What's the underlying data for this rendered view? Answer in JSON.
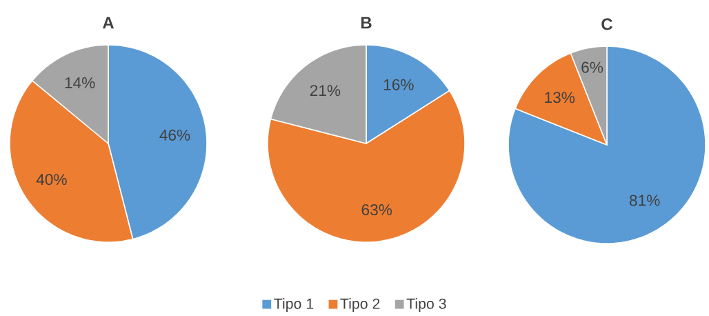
{
  "chart_data": [
    {
      "type": "pie",
      "title": "A",
      "categories": [
        "Tipo 1",
        "Tipo 2",
        "Tipo 3"
      ],
      "values": [
        46,
        40,
        14
      ],
      "value_labels": [
        "46%",
        "40%",
        "14%"
      ],
      "colors": [
        "#5b9bd5",
        "#ed7d31",
        "#a5a5a5"
      ],
      "legend": "bottom"
    },
    {
      "type": "pie",
      "title": "B",
      "categories": [
        null,
        null,
        null
      ],
      "values": [
        16,
        63,
        21
      ],
      "value_labels": [
        "16%",
        "63%",
        "21%"
      ],
      "colors": [
        "#5b9bd5",
        "#ed7d31",
        "#a5a5a5"
      ]
    },
    {
      "type": "pie",
      "title": "C",
      "categories": [
        null,
        null,
        null
      ],
      "values": [
        81,
        13,
        6
      ],
      "value_labels": [
        "81%",
        "13%",
        "6%"
      ],
      "colors": [
        "#5b9bd5",
        "#ed7d31",
        "#a5a5a5"
      ]
    }
  ]
}
